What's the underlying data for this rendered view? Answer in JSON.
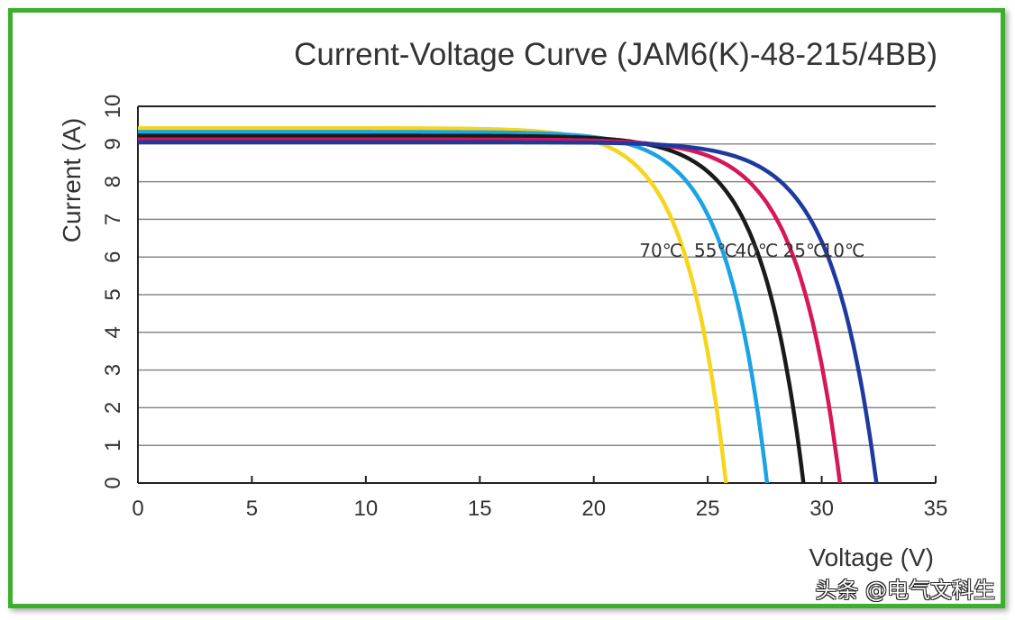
{
  "chart_data": {
    "type": "line",
    "title": "Current-Voltage Curve (JAM6(K)-48-215/4BB)",
    "xlabel": "Voltage (V)",
    "ylabel": "Current (A)",
    "xlim": [
      0,
      35
    ],
    "ylim": [
      0,
      10
    ],
    "xticks": [
      "0",
      "5",
      "10",
      "15",
      "20",
      "25",
      "30",
      "35"
    ],
    "yticks": [
      "0",
      "1",
      "2",
      "3",
      "4",
      "5",
      "6",
      "7",
      "8",
      "9",
      "10"
    ],
    "grid": "horizontal",
    "series": [
      {
        "name": "70℃",
        "color": "#f7d51c",
        "isc": 9.42,
        "voc": 25.8,
        "vt": 1.75,
        "label_v": 22.0
      },
      {
        "name": "55℃",
        "color": "#1ba3e4",
        "isc": 9.32,
        "voc": 27.6,
        "vt": 1.8,
        "label_v": 24.4
      },
      {
        "name": "40℃",
        "color": "#1a1a1a",
        "isc": 9.22,
        "voc": 29.2,
        "vt": 1.85,
        "label_v": 26.2
      },
      {
        "name": "25℃",
        "color": "#d6175a",
        "isc": 9.12,
        "voc": 30.8,
        "vt": 1.9,
        "label_v": 28.3
      },
      {
        "name": "10℃",
        "color": "#1f3a9e",
        "isc": 9.05,
        "voc": 32.4,
        "vt": 1.95,
        "label_v": 30.0
      }
    ],
    "annotation_y": 6.2
  },
  "watermark": "头条 @电气文科生"
}
